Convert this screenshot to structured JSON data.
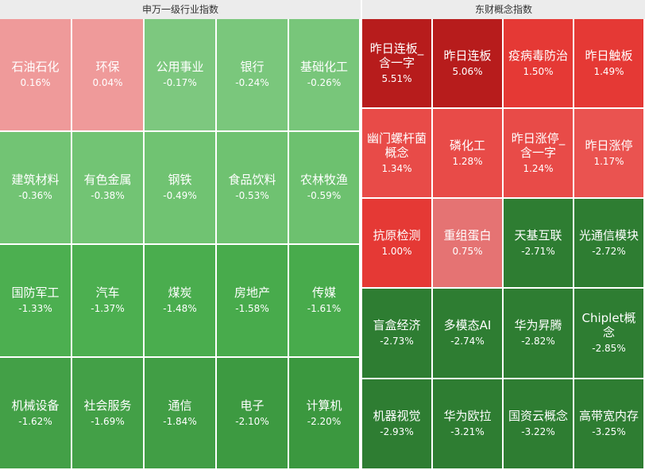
{
  "left": {
    "title": "申万一级行业指数",
    "rows": [
      [
        {
          "name": "石油石化",
          "pct": "0.16%",
          "color": "#ef9a9a"
        },
        {
          "name": "环保",
          "pct": "0.04%",
          "color": "#ef9a9a"
        },
        {
          "name": "公用事业",
          "pct": "-0.17%",
          "color": "#7dc87f"
        },
        {
          "name": "银行",
          "pct": "-0.24%",
          "color": "#7ac77c"
        },
        {
          "name": "基础化工",
          "pct": "-0.26%",
          "color": "#78c67a"
        }
      ],
      [
        {
          "name": "建筑材料",
          "pct": "-0.36%",
          "color": "#72c474"
        },
        {
          "name": "有色金属",
          "pct": "-0.38%",
          "color": "#72c474"
        },
        {
          "name": "钢铁",
          "pct": "-0.49%",
          "color": "#70c372"
        },
        {
          "name": "食品饮料",
          "pct": "-0.53%",
          "color": "#6fc271"
        },
        {
          "name": "农林牧渔",
          "pct": "-0.59%",
          "color": "#6dc16f"
        }
      ],
      [
        {
          "name": "国防军工",
          "pct": "-1.33%",
          "color": "#4caf50"
        },
        {
          "name": "汽车",
          "pct": "-1.37%",
          "color": "#4caf50"
        },
        {
          "name": "煤炭",
          "pct": "-1.48%",
          "color": "#4aad4e"
        },
        {
          "name": "房地产",
          "pct": "-1.58%",
          "color": "#48ab4c"
        },
        {
          "name": "传媒",
          "pct": "-1.61%",
          "color": "#48ab4c"
        }
      ],
      [
        {
          "name": "机械设备",
          "pct": "-1.62%",
          "color": "#43a047"
        },
        {
          "name": "社会服务",
          "pct": "-1.69%",
          "color": "#43a047"
        },
        {
          "name": "通信",
          "pct": "-1.84%",
          "color": "#419e45"
        },
        {
          "name": "电子",
          "pct": "-2.10%",
          "color": "#3d9a41"
        },
        {
          "name": "计算机",
          "pct": "-2.20%",
          "color": "#3b983f"
        }
      ]
    ]
  },
  "right": {
    "title": "东财概念指数",
    "rows": [
      [
        {
          "name": "昨日连板_含一字",
          "pct": "5.51%",
          "color": "#b71c1c"
        },
        {
          "name": "昨日连板",
          "pct": "5.06%",
          "color": "#b71c1c"
        },
        {
          "name": "疫病毒防治",
          "pct": "1.50%",
          "color": "#e53935"
        },
        {
          "name": "昨日触板",
          "pct": "1.49%",
          "color": "#e53935"
        }
      ],
      [
        {
          "name": "幽门螺杆菌概念",
          "pct": "1.34%",
          "color": "#e84b48"
        },
        {
          "name": "磷化工",
          "pct": "1.28%",
          "color": "#e84b48"
        },
        {
          "name": "昨日涨停_含一字",
          "pct": "1.24%",
          "color": "#e84b48"
        },
        {
          "name": "昨日涨停",
          "pct": "1.17%",
          "color": "#ea5350"
        }
      ],
      [
        {
          "name": "抗原检测",
          "pct": "1.00%",
          "color": "#e53935"
        },
        {
          "name": "重组蛋白",
          "pct": "0.75%",
          "color": "#e57373"
        },
        {
          "name": "天基互联",
          "pct": "-2.71%",
          "color": "#2e7d32"
        },
        {
          "name": "光通信模块",
          "pct": "-2.72%",
          "color": "#2e7d32"
        }
      ],
      [
        {
          "name": "盲盒经济",
          "pct": "-2.73%",
          "color": "#2e7d32"
        },
        {
          "name": "多模态AI",
          "pct": "-2.74%",
          "color": "#2e7d32"
        },
        {
          "name": "华为昇腾",
          "pct": "-2.82%",
          "color": "#2e7d32"
        },
        {
          "name": "Chiplet概念",
          "pct": "-2.85%",
          "color": "#2e7d32"
        }
      ],
      [
        {
          "name": "机器视觉",
          "pct": "-2.93%",
          "color": "#2e7d32"
        },
        {
          "name": "华为欧拉",
          "pct": "-3.21%",
          "color": "#2e7d32"
        },
        {
          "name": "国资云概念",
          "pct": "-3.22%",
          "color": "#2e7d32"
        },
        {
          "name": "高带宽内存",
          "pct": "-3.25%",
          "color": "#2e7d32"
        }
      ]
    ]
  }
}
